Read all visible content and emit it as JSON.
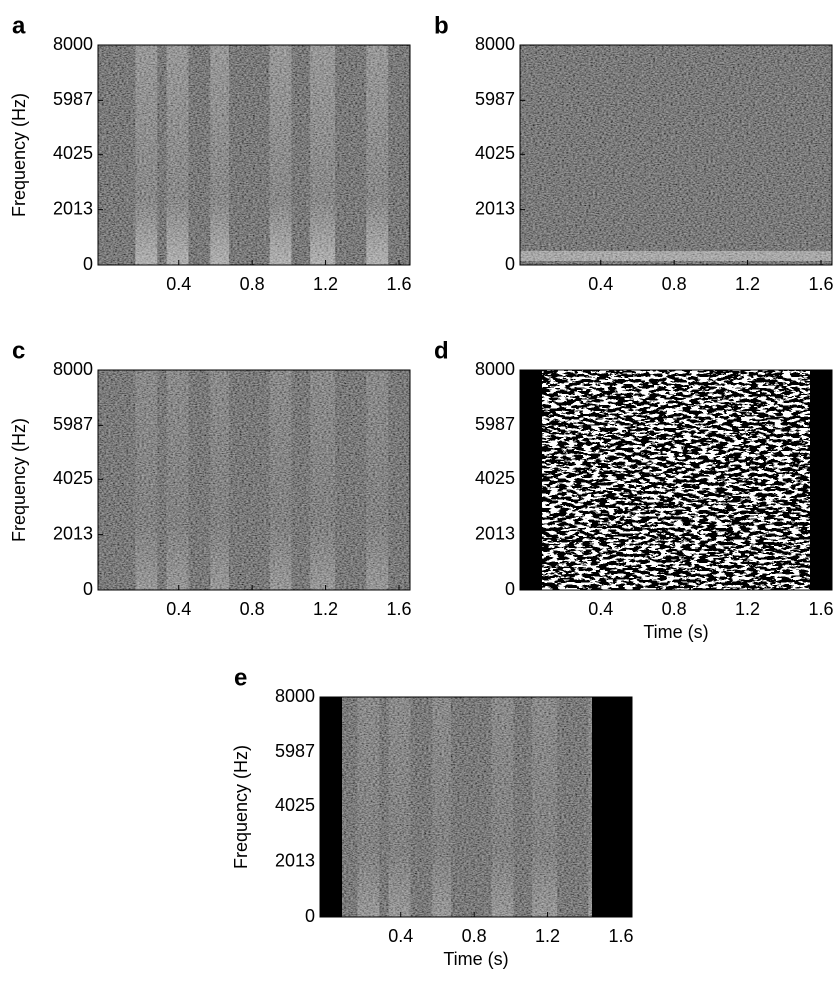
{
  "chart_data": [
    {
      "type": "spectrogram",
      "panel_label": "a",
      "ylabel": "Frequency (Hz)",
      "xlim": [
        -0.04,
        1.66
      ],
      "ylim": [
        0,
        8000
      ],
      "xticks": [
        0.4,
        0.8,
        1.2,
        1.6
      ],
      "yticks": [
        0,
        2013,
        4025,
        5987,
        8000
      ]
    },
    {
      "type": "spectrogram",
      "panel_label": "b",
      "xlim": [
        -0.04,
        1.66
      ],
      "ylim": [
        0,
        8000
      ],
      "xticks": [
        0.4,
        0.8,
        1.2,
        1.6
      ],
      "yticks": [
        0,
        2013,
        4025,
        5987,
        8000
      ]
    },
    {
      "type": "spectrogram",
      "panel_label": "c",
      "ylabel": "Frequency (Hz)",
      "xlim": [
        -0.04,
        1.66
      ],
      "ylim": [
        0,
        8000
      ],
      "xticks": [
        0.4,
        0.8,
        1.2,
        1.6
      ],
      "yticks": [
        0,
        2013,
        4025,
        5987,
        8000
      ]
    },
    {
      "type": "spectrogram",
      "panel_label": "d",
      "xlabel": "Time (s)",
      "xlim": [
        -0.04,
        1.66
      ],
      "ylim": [
        0,
        8000
      ],
      "xticks": [
        0.4,
        0.8,
        1.2,
        1.6
      ],
      "yticks": [
        0,
        2013,
        4025,
        5987,
        8000
      ]
    },
    {
      "type": "spectrogram",
      "panel_label": "e",
      "ylabel": "Frequency (Hz)",
      "xlabel": "Time (s)",
      "xlim": [
        -0.04,
        1.66
      ],
      "ylim": [
        0,
        8000
      ],
      "xticks": [
        0.4,
        0.8,
        1.2,
        1.6
      ],
      "yticks": [
        0,
        2013,
        4025,
        5987,
        8000
      ]
    }
  ]
}
